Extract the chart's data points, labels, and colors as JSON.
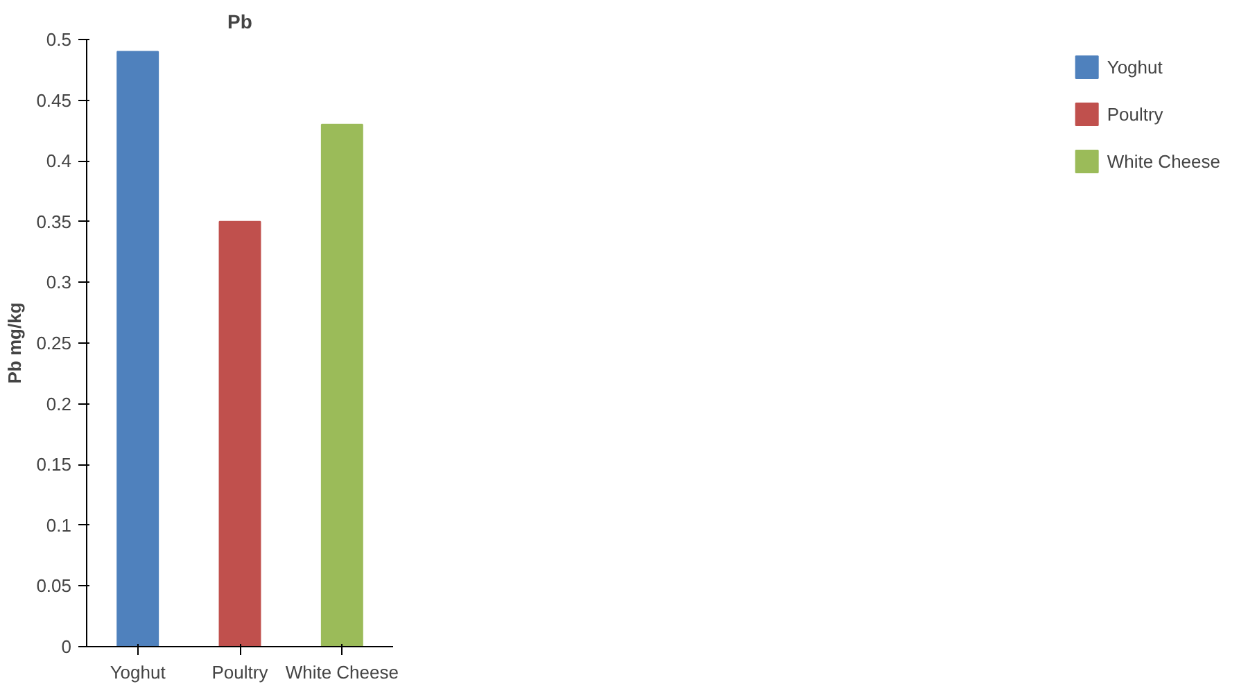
{
  "chart_data": {
    "type": "bar",
    "title": "Pb",
    "ylabel": "Pb mg/kg",
    "categories": [
      "Yoghut",
      "Poultry",
      "White Cheese"
    ],
    "series": [
      {
        "name": "Yoghut",
        "color": "#4f81bd",
        "values": [
          0.49,
          null,
          null
        ]
      },
      {
        "name": "Poultry",
        "color": "#c0504d",
        "values": [
          null,
          0.35,
          null
        ]
      },
      {
        "name": "White Cheese",
        "color": "#9bbb59",
        "values": [
          null,
          null,
          0.43
        ]
      }
    ],
    "ylim": [
      0,
      0.5
    ],
    "yticks": [
      0,
      0.05,
      0.1,
      0.15,
      0.2,
      0.25,
      0.3,
      0.35,
      0.4,
      0.45,
      0.5
    ],
    "grid": false,
    "legend": "right"
  }
}
